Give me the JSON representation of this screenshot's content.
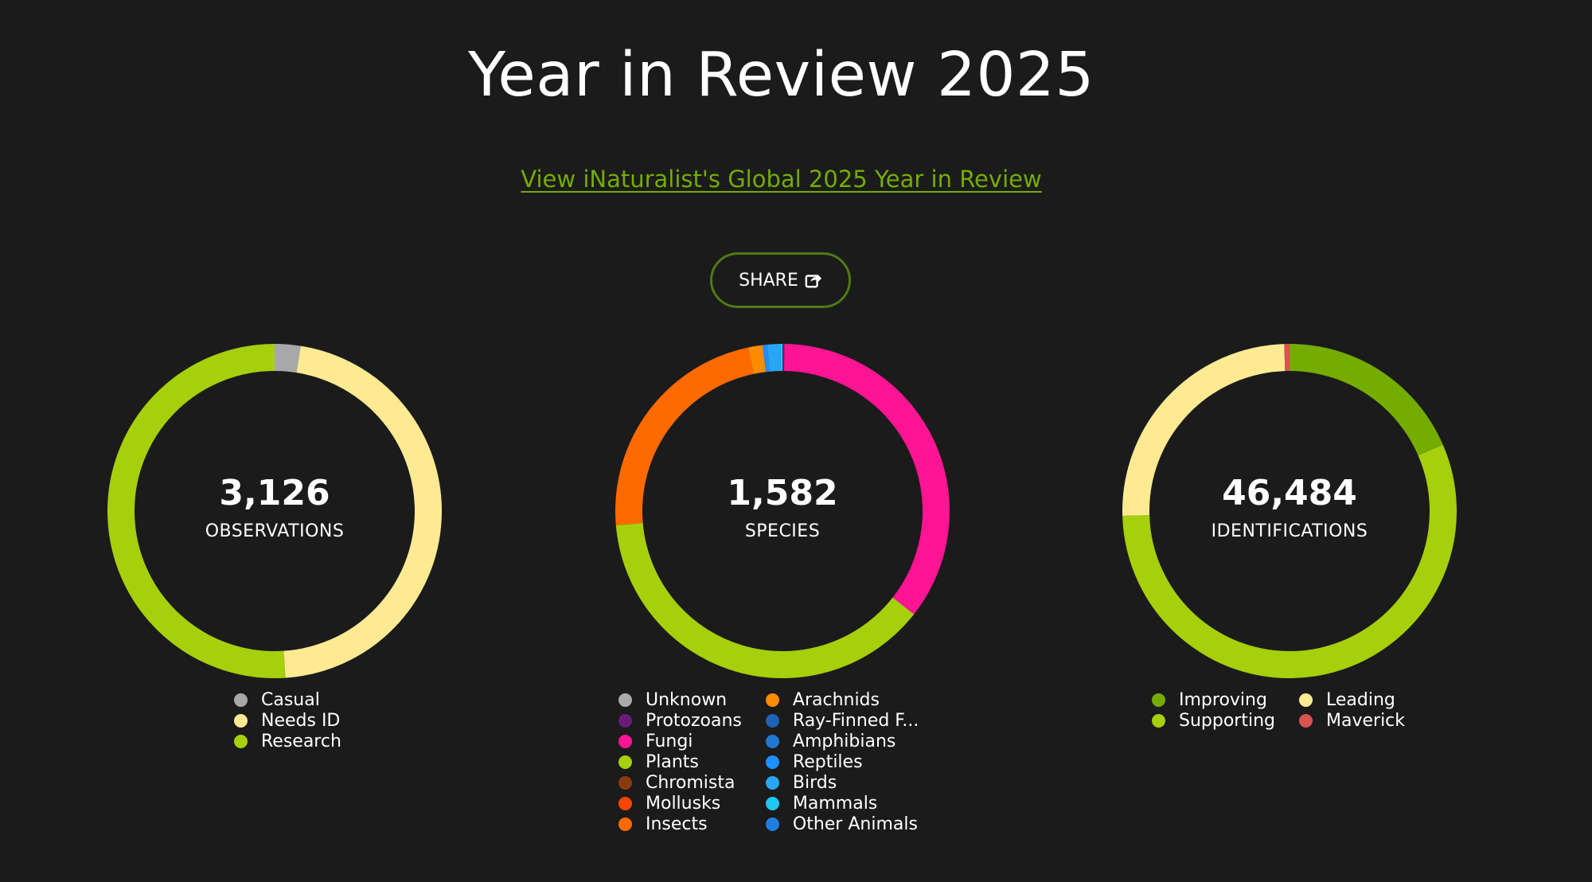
{
  "page": {
    "title": "Year in Review 2025",
    "global_link": "View iNaturalist's Global 2025 Year in Review",
    "share_label": "SHARE"
  },
  "colors": {
    "background": "#1b1b1b",
    "link": "#74ac00",
    "share_border": "#4f7a14"
  },
  "chart_data": [
    {
      "type": "pie",
      "donut": true,
      "center_value": "3,126",
      "center_label": "OBSERVATIONS",
      "legend_position": "bottom",
      "legend_columns": 1,
      "series": [
        {
          "name": "Casual",
          "value": 78,
          "color": "#a8a8a8"
        },
        {
          "name": "Needs ID",
          "value": 1453,
          "color": "#fdea92"
        },
        {
          "name": "Research",
          "value": 1595,
          "color": "#a6cf0c"
        }
      ]
    },
    {
      "type": "pie",
      "donut": true,
      "center_value": "1,582",
      "center_label": "SPECIES",
      "legend_position": "bottom",
      "legend_columns": 2,
      "series": [
        {
          "name": "Unknown",
          "value": 0,
          "color": "#aaaaaa"
        },
        {
          "name": "Protozoans",
          "value": 3,
          "color": "#6a1b7a"
        },
        {
          "name": "Fungi",
          "value": 560,
          "color": "#ff1493"
        },
        {
          "name": "Plants",
          "value": 602,
          "color": "#a6cf0c"
        },
        {
          "name": "Chromista",
          "value": 0,
          "color": "#8b3a0f"
        },
        {
          "name": "Mollusks",
          "value": 0,
          "color": "#ff4500"
        },
        {
          "name": "Insects",
          "value": 365,
          "color": "#ff6a00"
        },
        {
          "name": "Arachnids",
          "value": 22,
          "color": "#ff8c00"
        },
        {
          "name": "Ray-Finned F...",
          "value": 0,
          "color": "#1e63b5"
        },
        {
          "name": "Amphibians",
          "value": 0,
          "color": "#1e78d0"
        },
        {
          "name": "Reptiles",
          "value": 7,
          "color": "#1e90ff"
        },
        {
          "name": "Birds",
          "value": 20,
          "color": "#29a6f5"
        },
        {
          "name": "Mammals",
          "value": 3,
          "color": "#1ec8f0"
        },
        {
          "name": "Other Animals",
          "value": 0,
          "color": "#1e7fe0"
        }
      ]
    },
    {
      "type": "pie",
      "donut": true,
      "center_value": "46,484",
      "center_label": "IDENTIFICATIONS",
      "legend_position": "bottom",
      "legend_columns": 2,
      "series": [
        {
          "name": "Improving",
          "value": 8600,
          "color": "#74ac00"
        },
        {
          "name": "Supporting",
          "value": 26050,
          "color": "#a6cf0c"
        },
        {
          "name": "Leading",
          "value": 11600,
          "color": "#fdea92"
        },
        {
          "name": "Maverick",
          "value": 234,
          "color": "#d9534f"
        }
      ]
    }
  ]
}
